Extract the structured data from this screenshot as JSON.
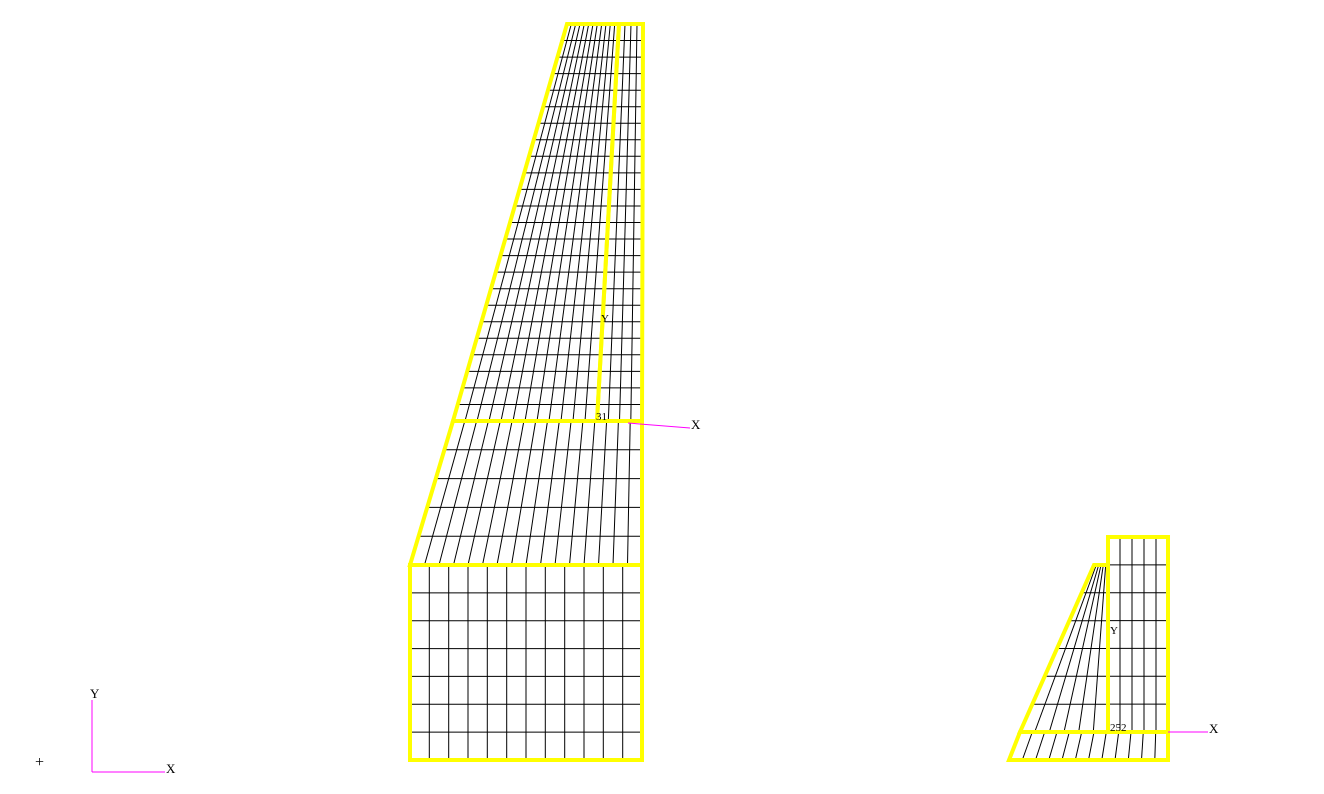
{
  "colors": {
    "background": "#ffffff",
    "outline": "#ffff00",
    "mesh": "#000000",
    "axis": "#ff00ff",
    "label": "#000000"
  },
  "global_axis": {
    "x_label": "X",
    "y_label": "Y",
    "origin_marker": "+"
  },
  "model_1": {
    "x_label": "X",
    "y_label": "Y",
    "node_label": "31"
  },
  "model_2": {
    "x_label": "X",
    "y_label": "Y",
    "node_label": "252"
  }
}
